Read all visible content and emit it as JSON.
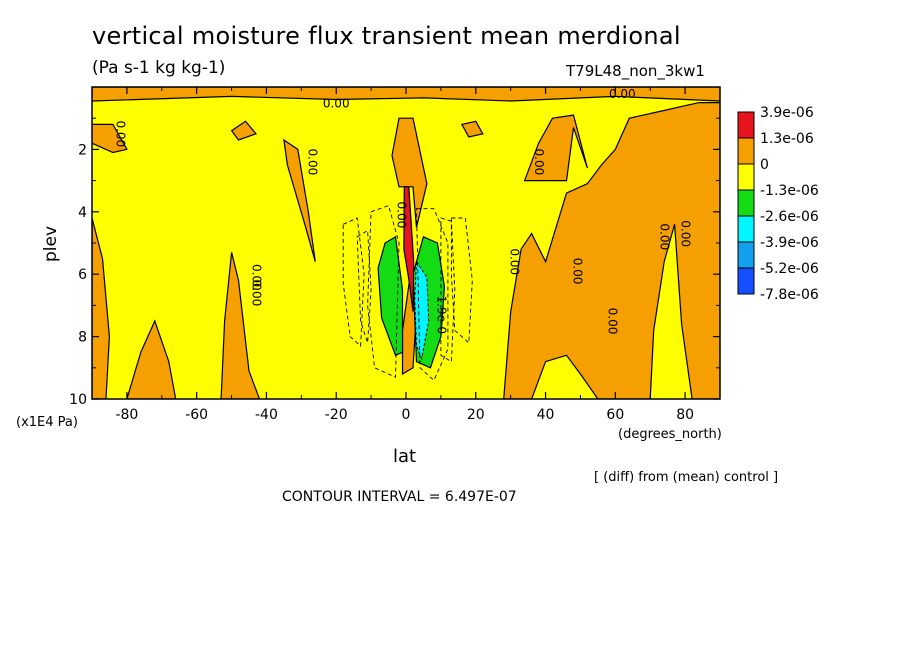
{
  "title": "vertical moisture flux transient mean merdional",
  "units": "(Pa s-1 kg kg-1)",
  "run_label": "T79L48_non_3kw1",
  "y_axis_unit": "(x1E4 Pa)",
  "x_axis_unit": "(degrees_north)",
  "diff_note": "[ (diff) from (mean) control ]",
  "contour_interval": "CONTOUR INTERVAL = 6.497E-07",
  "colors": {
    "red": "#e8141b",
    "orange": "#f5a000",
    "yellow": "#ffff00",
    "green": "#14dc14",
    "cyan": "#00f5ff",
    "lightblue": "#14a0f0",
    "blue": "#1450ff"
  },
  "chart_data": {
    "type": "heatmap",
    "subtype": "filled-contour",
    "xlabel": "lat",
    "ylabel": "plev",
    "xlim": [
      -90,
      90
    ],
    "ylim": [
      10,
      0
    ],
    "x_ticks": [
      -80,
      -60,
      -40,
      -20,
      0,
      20,
      40,
      60,
      80
    ],
    "y_ticks": [
      2,
      4,
      6,
      8,
      10
    ],
    "legend": {
      "placement": "right",
      "levels": [
        "3.9e-06",
        "1.3e-06",
        "0",
        "-1.3e-06",
        "-2.6e-06",
        "-3.9e-06",
        "-5.2e-06",
        "-7.8e-06"
      ],
      "colors": [
        "red",
        "orange",
        "yellow",
        "green",
        "cyan",
        "lightblue",
        "blue"
      ]
    },
    "contour_labels": [
      "0.00",
      "0.00",
      "0.00",
      "0.00",
      "0.00",
      "0.00",
      "0.00",
      "0.00",
      "0.00",
      "0.00",
      "0.00",
      "0.00",
      "0.00",
      "1.9e-0"
    ]
  }
}
